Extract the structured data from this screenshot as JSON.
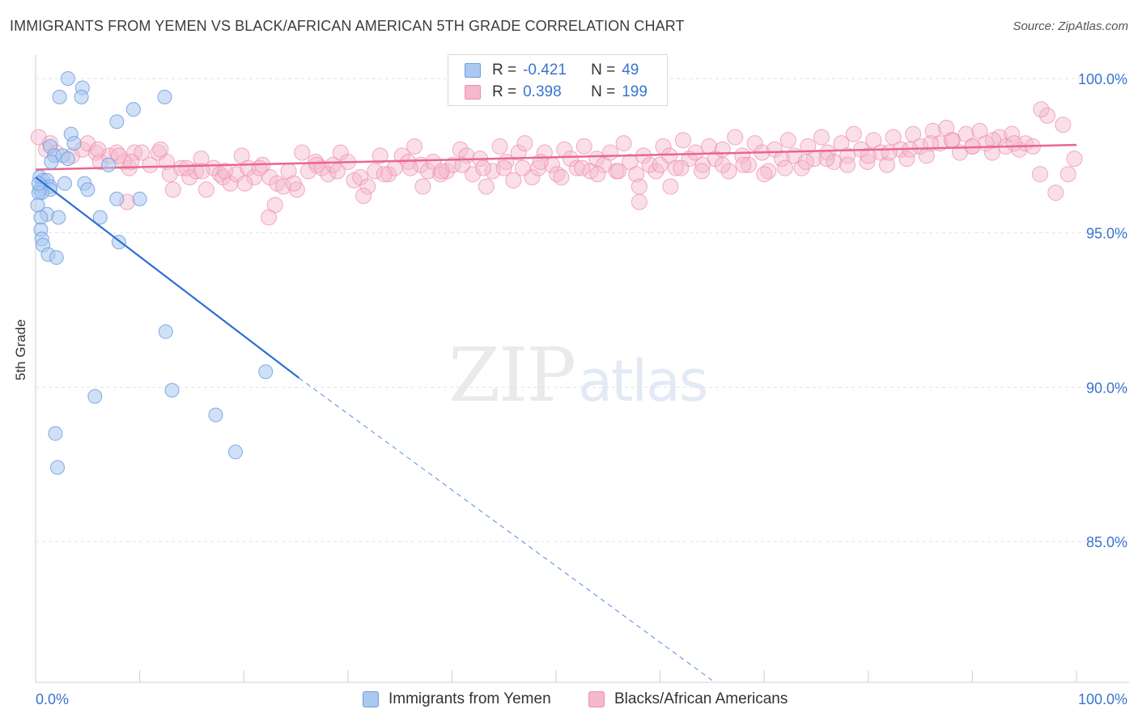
{
  "title": "IMMIGRANTS FROM YEMEN VS BLACK/AFRICAN AMERICAN 5TH GRADE CORRELATION CHART",
  "source": "Source: ZipAtlas.com",
  "watermark": {
    "zip": "ZIP",
    "atlas": "atlas"
  },
  "colors": {
    "blue_fill": "#aac8f0",
    "blue_stroke": "#6e9ee0",
    "blue_line": "#2a6fd4",
    "pink_fill": "#f5b8cc",
    "pink_stroke": "#ee8fb0",
    "pink_line": "#e8668f",
    "axis_text": "#3a74d0",
    "grid": "#e2e2e2"
  },
  "legend": {
    "rows": [
      {
        "r_label": "R =",
        "r_value": "-0.421",
        "n_label": "N =",
        "n_value": "49",
        "series": "blue"
      },
      {
        "r_label": "R =",
        "r_value": "0.398",
        "n_label": "N =",
        "n_value": "199",
        "series": "pink"
      }
    ]
  },
  "bottom_legend": [
    {
      "label": "Immigrants from Yemen",
      "series": "blue"
    },
    {
      "label": "Blacks/African Americans",
      "series": "pink"
    }
  ],
  "chart_data": {
    "type": "scatter",
    "title": "IMMIGRANTS FROM YEMEN VS BLACK/AFRICAN AMERICAN 5TH GRADE CORRELATION CHART",
    "xlabel": "",
    "ylabel": "5th Grade",
    "xlim": [
      0,
      100
    ],
    "ylim": [
      80.5,
      100.8
    ],
    "x_tick_labels": [
      {
        "value": 0,
        "label": "0.0%"
      },
      {
        "value": 100,
        "label": "100.0%"
      }
    ],
    "y_tick_labels": [
      {
        "value": 100,
        "label": "100.0%"
      },
      {
        "value": 95,
        "label": "95.0%"
      },
      {
        "value": 90,
        "label": "90.0%"
      },
      {
        "value": 85,
        "label": "85.0%"
      }
    ],
    "x_minor_ticks": [
      0,
      10,
      20,
      30,
      40,
      50,
      60,
      70,
      80,
      90,
      100
    ],
    "series": [
      {
        "name": "Immigrants from Yemen",
        "color": "blue",
        "r": -0.421,
        "n": 49,
        "trend": {
          "x0": 0,
          "y0": 96.8,
          "x1": 25.3,
          "y1": 90.3,
          "dash_x1": 65,
          "dash_y1": 80.5
        },
        "points": [
          [
            3.1,
            100.0
          ],
          [
            4.5,
            99.7
          ],
          [
            2.3,
            99.4
          ],
          [
            4.4,
            99.4
          ],
          [
            12.4,
            99.4
          ],
          [
            9.4,
            99.0
          ],
          [
            7.8,
            98.6
          ],
          [
            3.4,
            98.2
          ],
          [
            3.7,
            97.9
          ],
          [
            1.4,
            97.8
          ],
          [
            1.8,
            97.5
          ],
          [
            2.6,
            97.5
          ],
          [
            3.1,
            97.4
          ],
          [
            1.5,
            97.3
          ],
          [
            7.0,
            97.2
          ],
          [
            0.4,
            96.8
          ],
          [
            0.7,
            96.7
          ],
          [
            1.1,
            96.7
          ],
          [
            0.6,
            96.5
          ],
          [
            1.4,
            96.5
          ],
          [
            2.8,
            96.6
          ],
          [
            4.7,
            96.6
          ],
          [
            5.0,
            96.4
          ],
          [
            1.4,
            96.4
          ],
          [
            0.4,
            96.4
          ],
          [
            0.6,
            96.3
          ],
          [
            0.3,
            96.3
          ],
          [
            7.8,
            96.1
          ],
          [
            10.0,
            96.1
          ],
          [
            0.2,
            95.9
          ],
          [
            1.1,
            95.6
          ],
          [
            0.5,
            95.5
          ],
          [
            2.2,
            95.5
          ],
          [
            6.2,
            95.5
          ],
          [
            0.5,
            95.1
          ],
          [
            0.6,
            94.8
          ],
          [
            0.7,
            94.6
          ],
          [
            8.0,
            94.7
          ],
          [
            1.2,
            94.3
          ],
          [
            2.0,
            94.2
          ],
          [
            12.5,
            91.8
          ],
          [
            22.1,
            90.5
          ],
          [
            13.1,
            89.9
          ],
          [
            5.7,
            89.7
          ],
          [
            17.3,
            89.1
          ],
          [
            1.9,
            88.5
          ],
          [
            19.2,
            87.9
          ],
          [
            2.1,
            87.4
          ],
          [
            0.3,
            96.6
          ]
        ]
      },
      {
        "name": "Blacks/African Americans",
        "color": "pink",
        "r": 0.398,
        "n": 199,
        "trend": {
          "x0": 0,
          "y0": 97.05,
          "x1": 100,
          "y1": 97.85
        },
        "points": [
          [
            0.3,
            98.1
          ],
          [
            1.0,
            97.7
          ],
          [
            1.4,
            97.9
          ],
          [
            2.0,
            97.6
          ],
          [
            3.5,
            97.5
          ],
          [
            4.5,
            97.7
          ],
          [
            5.8,
            97.6
          ],
          [
            6.2,
            97.3
          ],
          [
            7.1,
            97.5
          ],
          [
            7.8,
            97.6
          ],
          [
            8.5,
            97.3
          ],
          [
            9.0,
            97.1
          ],
          [
            9.5,
            97.6
          ],
          [
            10.2,
            97.6
          ],
          [
            11.0,
            97.2
          ],
          [
            11.8,
            97.6
          ],
          [
            12.6,
            97.3
          ],
          [
            12.9,
            96.9
          ],
          [
            13.2,
            96.4
          ],
          [
            14.0,
            97.1
          ],
          [
            14.8,
            96.8
          ],
          [
            15.4,
            97.0
          ],
          [
            15.9,
            97.4
          ],
          [
            16.4,
            96.4
          ],
          [
            17.1,
            97.1
          ],
          [
            17.7,
            96.9
          ],
          [
            18.0,
            96.8
          ],
          [
            18.7,
            96.6
          ],
          [
            19.3,
            96.9
          ],
          [
            19.8,
            97.5
          ],
          [
            20.4,
            97.1
          ],
          [
            21.0,
            96.8
          ],
          [
            21.8,
            97.2
          ],
          [
            22.5,
            96.8
          ],
          [
            23.2,
            96.6
          ],
          [
            23.8,
            96.5
          ],
          [
            24.3,
            97.0
          ],
          [
            25.1,
            96.4
          ],
          [
            25.6,
            97.6
          ],
          [
            26.2,
            97.0
          ],
          [
            26.9,
            97.3
          ],
          [
            27.5,
            97.1
          ],
          [
            28.1,
            96.9
          ],
          [
            28.6,
            97.2
          ],
          [
            29.3,
            97.6
          ],
          [
            30.0,
            97.3
          ],
          [
            30.6,
            96.7
          ],
          [
            31.2,
            96.8
          ],
          [
            31.9,
            96.5
          ],
          [
            32.6,
            97.0
          ],
          [
            33.1,
            97.5
          ],
          [
            33.9,
            96.9
          ],
          [
            34.5,
            97.1
          ],
          [
            35.2,
            97.5
          ],
          [
            35.8,
            97.3
          ],
          [
            36.4,
            97.8
          ],
          [
            37.0,
            97.2
          ],
          [
            37.7,
            97.0
          ],
          [
            38.2,
            97.3
          ],
          [
            38.9,
            96.9
          ],
          [
            39.5,
            97.0
          ],
          [
            40.1,
            97.2
          ],
          [
            40.8,
            97.7
          ],
          [
            41.4,
            97.5
          ],
          [
            42.0,
            96.9
          ],
          [
            42.7,
            97.4
          ],
          [
            43.3,
            96.5
          ],
          [
            43.9,
            97.0
          ],
          [
            44.6,
            97.8
          ],
          [
            45.2,
            97.3
          ],
          [
            45.9,
            96.7
          ],
          [
            46.4,
            97.6
          ],
          [
            47.0,
            97.9
          ],
          [
            47.7,
            96.8
          ],
          [
            48.3,
            97.1
          ],
          [
            48.9,
            97.6
          ],
          [
            49.6,
            97.2
          ],
          [
            50.1,
            96.9
          ],
          [
            50.8,
            97.7
          ],
          [
            51.4,
            97.4
          ],
          [
            52.0,
            97.1
          ],
          [
            52.7,
            97.8
          ],
          [
            53.3,
            97.0
          ],
          [
            53.9,
            97.4
          ],
          [
            54.6,
            97.2
          ],
          [
            55.2,
            97.6
          ],
          [
            55.8,
            97.0
          ],
          [
            56.5,
            97.9
          ],
          [
            57.1,
            97.3
          ],
          [
            57.7,
            96.9
          ],
          [
            58.4,
            97.5
          ],
          [
            59.0,
            97.2
          ],
          [
            59.6,
            97.0
          ],
          [
            60.3,
            97.8
          ],
          [
            60.9,
            97.5
          ],
          [
            61.5,
            97.1
          ],
          [
            62.2,
            98.0
          ],
          [
            62.8,
            97.4
          ],
          [
            63.4,
            97.6
          ],
          [
            64.1,
            97.2
          ],
          [
            64.7,
            97.8
          ],
          [
            65.3,
            97.4
          ],
          [
            66.0,
            97.7
          ],
          [
            66.6,
            97.0
          ],
          [
            67.2,
            98.1
          ],
          [
            67.9,
            97.5
          ],
          [
            68.5,
            97.2
          ],
          [
            69.1,
            97.9
          ],
          [
            69.8,
            97.6
          ],
          [
            70.4,
            97.0
          ],
          [
            71.0,
            97.7
          ],
          [
            71.7,
            97.4
          ],
          [
            72.3,
            98.0
          ],
          [
            72.9,
            97.5
          ],
          [
            73.6,
            97.1
          ],
          [
            74.2,
            97.8
          ],
          [
            74.8,
            97.4
          ],
          [
            75.5,
            98.1
          ],
          [
            76.1,
            97.6
          ],
          [
            76.7,
            97.3
          ],
          [
            77.4,
            97.9
          ],
          [
            78.0,
            97.5
          ],
          [
            78.6,
            98.2
          ],
          [
            79.3,
            97.7
          ],
          [
            79.9,
            97.3
          ],
          [
            80.5,
            98.0
          ],
          [
            81.2,
            97.6
          ],
          [
            81.8,
            97.2
          ],
          [
            82.4,
            98.1
          ],
          [
            83.1,
            97.7
          ],
          [
            83.7,
            97.4
          ],
          [
            84.3,
            98.2
          ],
          [
            85.0,
            97.8
          ],
          [
            85.6,
            97.5
          ],
          [
            86.2,
            98.3
          ],
          [
            86.9,
            97.9
          ],
          [
            87.5,
            98.4
          ],
          [
            88.1,
            98.0
          ],
          [
            88.8,
            97.6
          ],
          [
            89.4,
            98.2
          ],
          [
            90.0,
            97.8
          ],
          [
            90.7,
            98.3
          ],
          [
            91.3,
            97.9
          ],
          [
            91.9,
            97.6
          ],
          [
            92.6,
            98.1
          ],
          [
            93.2,
            97.8
          ],
          [
            93.8,
            98.2
          ],
          [
            94.5,
            97.7
          ],
          [
            95.1,
            97.9
          ],
          [
            95.8,
            97.8
          ],
          [
            96.5,
            96.9
          ],
          [
            97.2,
            98.8
          ],
          [
            98.0,
            96.3
          ],
          [
            98.7,
            98.5
          ],
          [
            99.2,
            96.9
          ],
          [
            99.8,
            97.4
          ],
          [
            96.6,
            99.0
          ],
          [
            5.0,
            97.9
          ],
          [
            6.0,
            97.7
          ],
          [
            8.0,
            97.5
          ],
          [
            9.2,
            97.3
          ],
          [
            12.0,
            97.7
          ],
          [
            14.5,
            97.1
          ],
          [
            16.0,
            97.0
          ],
          [
            18.2,
            97.0
          ],
          [
            20.1,
            96.6
          ],
          [
            21.5,
            97.1
          ],
          [
            23.0,
            95.9
          ],
          [
            22.4,
            95.5
          ],
          [
            24.8,
            96.6
          ],
          [
            27.0,
            97.2
          ],
          [
            29.0,
            97.0
          ],
          [
            31.5,
            96.2
          ],
          [
            33.5,
            96.9
          ],
          [
            36.0,
            97.1
          ],
          [
            37.2,
            96.5
          ],
          [
            39.0,
            97.0
          ],
          [
            41.0,
            97.2
          ],
          [
            43.0,
            97.1
          ],
          [
            45.0,
            97.1
          ],
          [
            46.8,
            97.1
          ],
          [
            48.5,
            97.3
          ],
          [
            50.5,
            96.8
          ],
          [
            52.5,
            97.1
          ],
          [
            54.0,
            96.9
          ],
          [
            56.0,
            97.0
          ],
          [
            58.0,
            96.5
          ],
          [
            60.0,
            97.2
          ],
          [
            62.0,
            97.1
          ],
          [
            64.0,
            97.0
          ],
          [
            66.0,
            97.2
          ],
          [
            68.0,
            97.2
          ],
          [
            70.0,
            96.9
          ],
          [
            72.0,
            97.1
          ],
          [
            74.0,
            97.3
          ],
          [
            76.0,
            97.4
          ],
          [
            78.0,
            97.2
          ],
          [
            80.0,
            97.5
          ],
          [
            82.0,
            97.6
          ],
          [
            84.0,
            97.7
          ],
          [
            86.0,
            97.9
          ],
          [
            88.0,
            98.0
          ],
          [
            90.0,
            97.8
          ],
          [
            92.0,
            98.0
          ],
          [
            94.0,
            97.9
          ],
          [
            8.8,
            96.0
          ],
          [
            58.0,
            96.0
          ],
          [
            61.0,
            96.5
          ]
        ]
      }
    ]
  }
}
